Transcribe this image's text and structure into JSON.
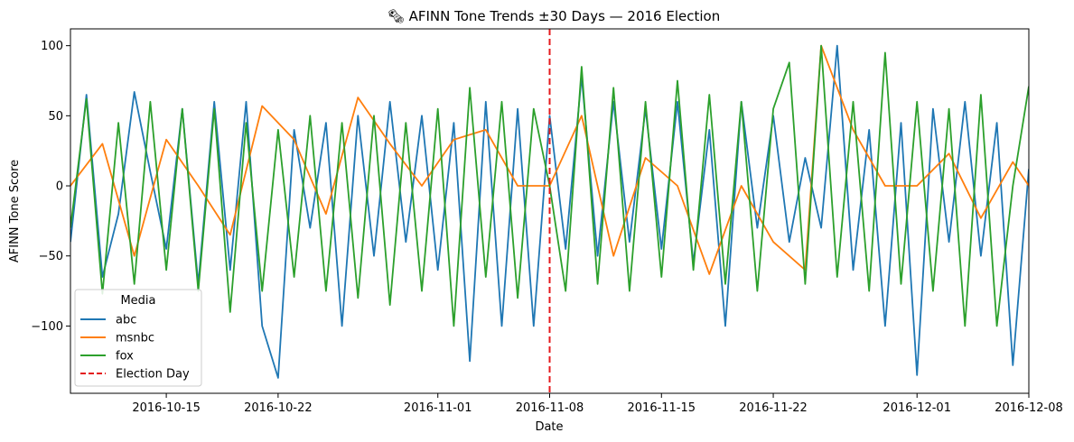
{
  "chart_data": {
    "type": "line",
    "title": "🗞 AFINN Tone Trends ±30 Days — 2016 Election",
    "xlabel": "Date",
    "ylabel": "AFINN Tone Score",
    "x_range": [
      "2016-10-09",
      "2016-12-08"
    ],
    "ylim": [
      -148,
      112
    ],
    "grid": false,
    "x_ticks": [
      "2016-10-15",
      "2016-10-22",
      "2016-11-01",
      "2016-11-08",
      "2016-11-15",
      "2016-11-22",
      "2016-12-01",
      "2016-12-08"
    ],
    "y_ticks": [
      100,
      50,
      0,
      -50,
      -100
    ],
    "legend": {
      "title": "Media",
      "placement": "lower-left",
      "entries": [
        "abc",
        "msnbc",
        "fox",
        "Election Day"
      ]
    },
    "colors": {
      "abc": "#1f77b4",
      "msnbc": "#ff7f0e",
      "fox": "#2ca02c",
      "election_day": "#e41a1c"
    },
    "vline": {
      "x": "2016-11-08",
      "label": "Election Day",
      "style": "dashed"
    },
    "series": [
      {
        "name": "abc",
        "x": [
          "2016-10-09",
          "2016-10-10",
          "2016-10-11",
          "2016-10-12",
          "2016-10-13",
          "2016-10-14",
          "2016-10-15",
          "2016-10-16",
          "2016-10-17",
          "2016-10-18",
          "2016-10-19",
          "2016-10-20",
          "2016-10-21",
          "2016-10-22",
          "2016-10-23",
          "2016-10-24",
          "2016-10-25",
          "2016-10-26",
          "2016-10-27",
          "2016-10-28",
          "2016-10-29",
          "2016-10-30",
          "2016-10-31",
          "2016-11-01",
          "2016-11-02",
          "2016-11-03",
          "2016-11-04",
          "2016-11-05",
          "2016-11-06",
          "2016-11-07",
          "2016-11-08",
          "2016-11-09",
          "2016-11-10",
          "2016-11-11",
          "2016-11-12",
          "2016-11-13",
          "2016-11-14",
          "2016-11-15",
          "2016-11-16",
          "2016-11-17",
          "2016-11-18",
          "2016-11-19",
          "2016-11-20",
          "2016-11-21",
          "2016-11-22",
          "2016-11-23",
          "2016-11-24",
          "2016-11-25",
          "2016-11-26",
          "2016-11-27",
          "2016-11-28",
          "2016-11-29",
          "2016-11-30",
          "2016-12-01",
          "2016-12-02",
          "2016-12-03",
          "2016-12-04",
          "2016-12-05",
          "2016-12-06",
          "2016-12-07",
          "2016-12-08"
        ],
        "values": [
          -40,
          65,
          -65,
          -20,
          67,
          10,
          -45,
          55,
          -70,
          60,
          -60,
          60,
          -100,
          -137,
          40,
          -30,
          45,
          -100,
          50,
          -50,
          60,
          -40,
          50,
          -60,
          45,
          -125,
          60,
          -100,
          55,
          -100,
          50,
          -45,
          78,
          -50,
          60,
          -40,
          55,
          -45,
          60,
          -55,
          40,
          -100,
          60,
          -30,
          50,
          -40,
          20,
          -30,
          100,
          -60,
          40,
          -100,
          45,
          -135,
          55,
          -40,
          60,
          -50,
          45,
          -128,
          12
        ]
      },
      {
        "name": "msnbc",
        "x": [
          "2016-10-09",
          "2016-10-11",
          "2016-10-13",
          "2016-10-15",
          "2016-10-17",
          "2016-10-19",
          "2016-10-21",
          "2016-10-23",
          "2016-10-25",
          "2016-10-27",
          "2016-10-29",
          "2016-10-31",
          "2016-11-02",
          "2016-11-04",
          "2016-11-06",
          "2016-11-08",
          "2016-11-10",
          "2016-11-12",
          "2016-11-14",
          "2016-11-16",
          "2016-11-18",
          "2016-11-20",
          "2016-11-22",
          "2016-11-24",
          "2016-11-25",
          "2016-11-27",
          "2016-11-29",
          "2016-12-01",
          "2016-12-03",
          "2016-12-05",
          "2016-12-07",
          "2016-12-08"
        ],
        "values": [
          0,
          30,
          -50,
          33,
          0,
          -35,
          57,
          33,
          -20,
          63,
          30,
          0,
          33,
          40,
          0,
          0,
          50,
          -50,
          20,
          0,
          -63,
          0,
          -40,
          -60,
          100,
          40,
          0,
          0,
          23,
          -23,
          17,
          0
        ]
      },
      {
        "name": "fox",
        "x": [
          "2016-10-09",
          "2016-10-10",
          "2016-10-11",
          "2016-10-12",
          "2016-10-13",
          "2016-10-14",
          "2016-10-15",
          "2016-10-16",
          "2016-10-17",
          "2016-10-18",
          "2016-10-19",
          "2016-10-20",
          "2016-10-21",
          "2016-10-22",
          "2016-10-23",
          "2016-10-24",
          "2016-10-25",
          "2016-10-26",
          "2016-10-27",
          "2016-10-28",
          "2016-10-29",
          "2016-10-30",
          "2016-10-31",
          "2016-11-01",
          "2016-11-02",
          "2016-11-03",
          "2016-11-04",
          "2016-11-05",
          "2016-11-06",
          "2016-11-07",
          "2016-11-08",
          "2016-11-09",
          "2016-11-10",
          "2016-11-11",
          "2016-11-12",
          "2016-11-13",
          "2016-11-14",
          "2016-11-15",
          "2016-11-16",
          "2016-11-17",
          "2016-11-18",
          "2016-11-19",
          "2016-11-20",
          "2016-11-21",
          "2016-11-22",
          "2016-11-23",
          "2016-11-24",
          "2016-11-25",
          "2016-11-26",
          "2016-11-27",
          "2016-11-28",
          "2016-11-29",
          "2016-11-30",
          "2016-12-01",
          "2016-12-02",
          "2016-12-03",
          "2016-12-04",
          "2016-12-05",
          "2016-12-06",
          "2016-12-07",
          "2016-12-08"
        ],
        "values": [
          -30,
          62,
          -77,
          45,
          -70,
          60,
          -60,
          55,
          -75,
          55,
          -90,
          45,
          -75,
          40,
          -65,
          50,
          -75,
          45,
          -80,
          50,
          -85,
          45,
          -75,
          55,
          -100,
          70,
          -65,
          60,
          -80,
          55,
          0,
          -75,
          85,
          -70,
          70,
          -75,
          60,
          -65,
          75,
          -60,
          65,
          -70,
          60,
          -75,
          55,
          88,
          -70,
          100,
          -65,
          60,
          -75,
          95,
          -70,
          60,
          -75,
          55,
          -100,
          65,
          -100,
          0,
          71
        ]
      }
    ]
  }
}
